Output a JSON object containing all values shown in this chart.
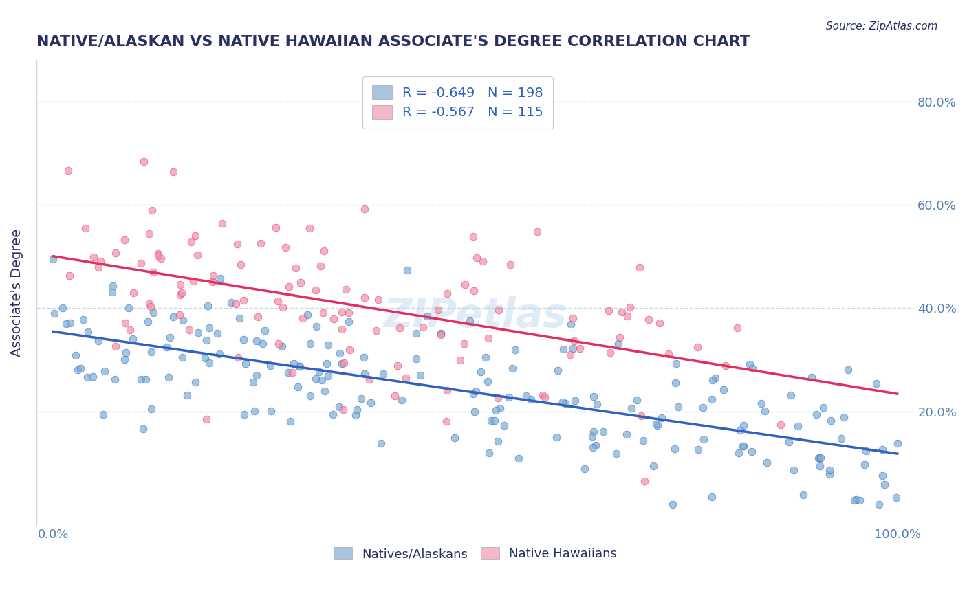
{
  "title": "NATIVE/ALASKAN VS NATIVE HAWAIIAN ASSOCIATE'S DEGREE CORRELATION CHART",
  "source_text": "Source: ZipAtlas.com",
  "xlabel": "",
  "ylabel": "Associate's Degree",
  "x_ticklabels": [
    "0.0%",
    "100.0%"
  ],
  "y_ticklabels_right": [
    "80.0%",
    "60.0%",
    "40.0%",
    "20.0%"
  ],
  "legend_label1": "R = -0.649   N = 198",
  "legend_label2": "R = -0.567   N = 115",
  "legend_color1": "#a8c4e0",
  "legend_color2": "#f4b8c8",
  "scatter_color1": "#7bafd4",
  "scatter_color2": "#f090a8",
  "line_color1": "#3060c0",
  "line_color2": "#e03060",
  "watermark": "ZIPetlas",
  "R1": -0.649,
  "N1": 198,
  "R2": -0.567,
  "N2": 115,
  "background_color": "#ffffff",
  "grid_color": "#c8d8e8",
  "title_color": "#283060",
  "axis_label_color": "#283060",
  "source_color": "#283060",
  "tick_color": "#5080b0",
  "legend_text_color": "#3060c0"
}
